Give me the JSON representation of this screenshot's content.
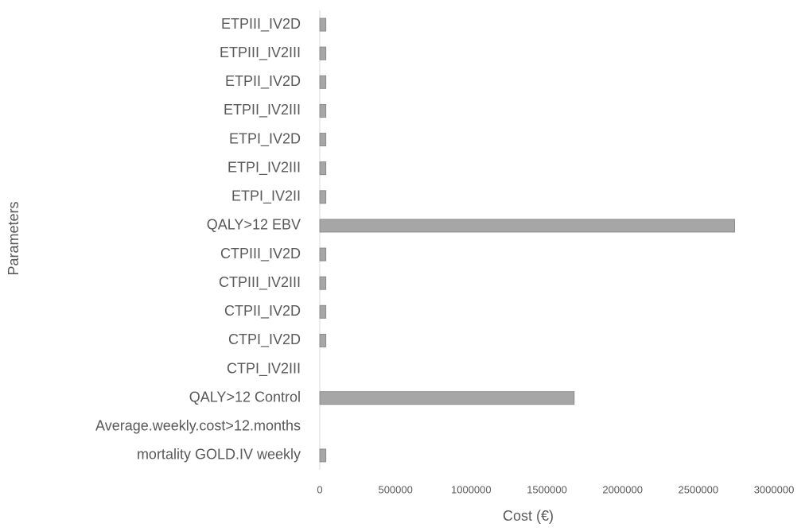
{
  "chart_data": {
    "type": "barh",
    "xlabel": "Cost (€)",
    "ylabel": "Parameters",
    "categories": [
      "ETPIII_IV2D",
      "ETPIII_IV2III",
      "ETPII_IV2D",
      "ETPII_IV2III",
      "ETPI_IV2D",
      "ETPI_IV2III",
      "ETPI_IV2II",
      "QALY>12 EBV",
      "CTPIII_IV2D",
      "CTPIII_IV2III",
      "CTPII_IV2D",
      "CTPI_IV2D",
      "CTPI_IV2III",
      "QALY>12 Control",
      "Average.weekly.cost>12.months",
      "mortality GOLD.IV weekly"
    ],
    "values": [
      40000,
      40000,
      40000,
      40000,
      40000,
      40000,
      40000,
      2740000,
      40000,
      40000,
      40000,
      40000,
      0,
      1680000,
      0,
      40000
    ],
    "color": "#a6a6a6",
    "xlim": [
      0,
      3000000
    ],
    "xticks": [
      0,
      500000,
      1000000,
      1500000,
      2000000,
      2500000,
      3000000
    ],
    "grid": false
  }
}
